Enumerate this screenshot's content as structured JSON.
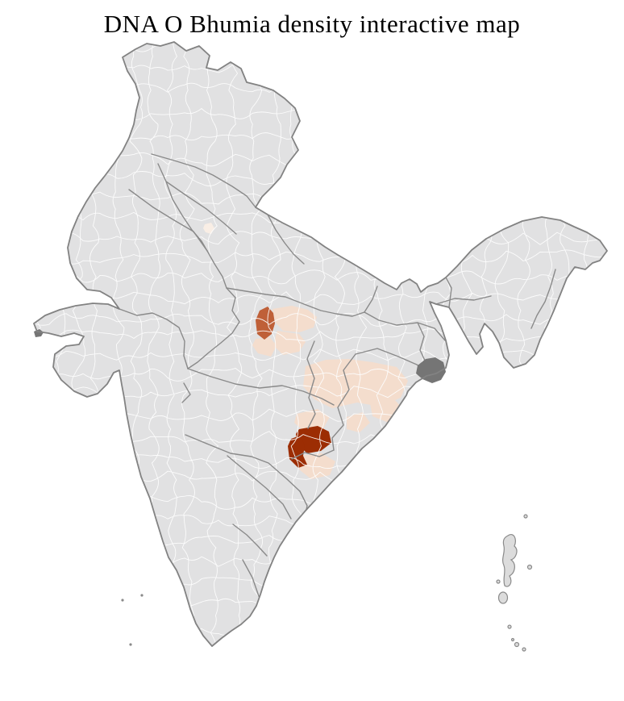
{
  "title": "DNA O Bhumia density interactive map",
  "map": {
    "kind": "india-district-choropleth",
    "background": "#ffffff",
    "base_fill": "#e1e1e2",
    "district_line": "#fdfdfd",
    "state_line": "#8a8a8a",
    "outline": "#828282",
    "dark_patch": "#757575",
    "island_fill": "#dcdcdc",
    "density_levels": [
      {
        "level": "none",
        "color": "#e1e1e2"
      },
      {
        "level": "very-low",
        "color": "#f9eee5"
      },
      {
        "level": "low",
        "color": "#f4ddcd"
      },
      {
        "level": "medium",
        "color": "#bf6038"
      },
      {
        "level": "high",
        "color": "#9c2d03"
      }
    ],
    "regions": [
      {
        "id": "central-cluster",
        "level": "low"
      },
      {
        "id": "central-core",
        "level": "medium"
      },
      {
        "id": "delhi-district",
        "level": "very-low"
      },
      {
        "id": "odisha-cluster",
        "level": "low"
      },
      {
        "id": "odisha-core",
        "level": "high"
      }
    ]
  }
}
